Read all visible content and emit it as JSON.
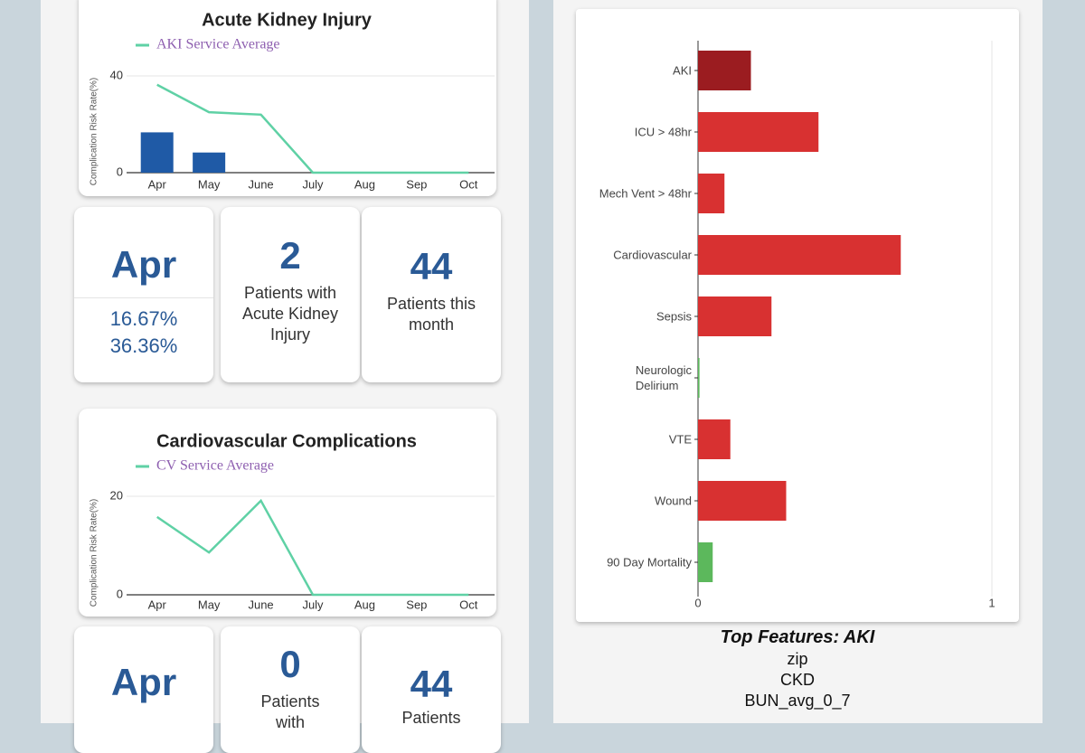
{
  "chart_data": [
    {
      "type": "combo",
      "title": "Acute Kidney Injury",
      "y_label": "Complication Risk Rate(%)",
      "categories": [
        "Apr",
        "May",
        "June",
        "July",
        "Aug",
        "Sep",
        "Oct"
      ],
      "series": [
        {
          "type": "bar",
          "color": "#1f5aa6",
          "values": [
            16.67,
            8.33,
            0,
            0,
            0,
            0,
            0
          ]
        },
        {
          "type": "line",
          "name": "AKI Service Average",
          "color": "#5fd1a5",
          "values": [
            36.36,
            25,
            24,
            0,
            0,
            0,
            0
          ]
        }
      ],
      "ylim": [
        0,
        40
      ],
      "yticks": [
        0,
        40
      ]
    },
    {
      "type": "combo",
      "title": "Cardiovascular Complications",
      "y_label": "Complication Risk Rate(%)",
      "categories": [
        "Apr",
        "May",
        "June",
        "July",
        "Aug",
        "Sep",
        "Oct"
      ],
      "series": [
        {
          "type": "line",
          "name": "CV Service Average",
          "color": "#5fd1a5",
          "values": [
            15.8,
            8.6,
            19.1,
            0,
            0,
            0,
            0
          ]
        }
      ],
      "ylim": [
        0,
        20
      ],
      "yticks": [
        0,
        20
      ]
    },
    {
      "type": "barh",
      "categories": [
        "AKI",
        "ICU > 48hr",
        "Mech Vent > 48hr",
        "Cardiovascular",
        "Sepsis",
        "Neurologic\nDelirium",
        "VTE",
        "Wound",
        "90 Day Mortality"
      ],
      "values": [
        0.18,
        0.41,
        0.09,
        0.69,
        0.25,
        0.005,
        0.11,
        0.3,
        0.05
      ],
      "colors": [
        "#9b1c20",
        "#d83131",
        "#d83131",
        "#d83131",
        "#d83131",
        "#5cb85c",
        "#d83131",
        "#d83131",
        "#5cb85c"
      ],
      "xlim": [
        0,
        1
      ],
      "xticks": [
        0,
        1
      ]
    }
  ],
  "aki_cards": [
    {
      "month": "Apr",
      "rates": [
        "16.67%",
        "36.36%"
      ]
    },
    {
      "count": 2,
      "label": "Patients with Acute Kidney Injury"
    },
    {
      "count": 44,
      "label": "Patients this month"
    }
  ],
  "cv_cards": [
    {
      "month": "Apr"
    },
    {
      "count": 0,
      "label": "Patients with"
    },
    {
      "count": 44,
      "label": "Patients"
    }
  ],
  "top_features": {
    "title": "Top Features: AKI",
    "items": [
      "zip",
      "CKD",
      "BUN_avg_0_7"
    ]
  }
}
